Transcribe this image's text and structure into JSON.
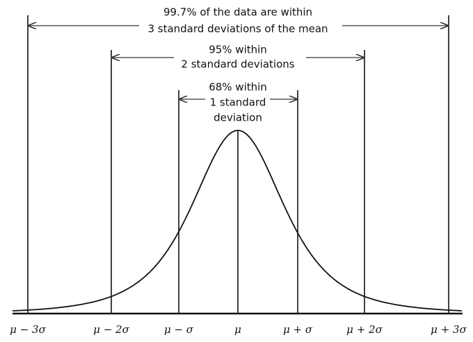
{
  "annotations": [
    {
      "lines": [
        "99.7% of the data are within",
        "3 standard deviations of the mean"
      ]
    },
    {
      "lines": [
        "95% within",
        "2 standard deviations"
      ]
    },
    {
      "lines": [
        "68% within",
        "1 standard",
        "deviation"
      ]
    }
  ],
  "axis_labels": [
    "μ − 3σ",
    "μ − 2σ",
    "μ − σ",
    "μ",
    "μ + σ",
    "μ + 2σ",
    "μ + 3σ"
  ]
}
